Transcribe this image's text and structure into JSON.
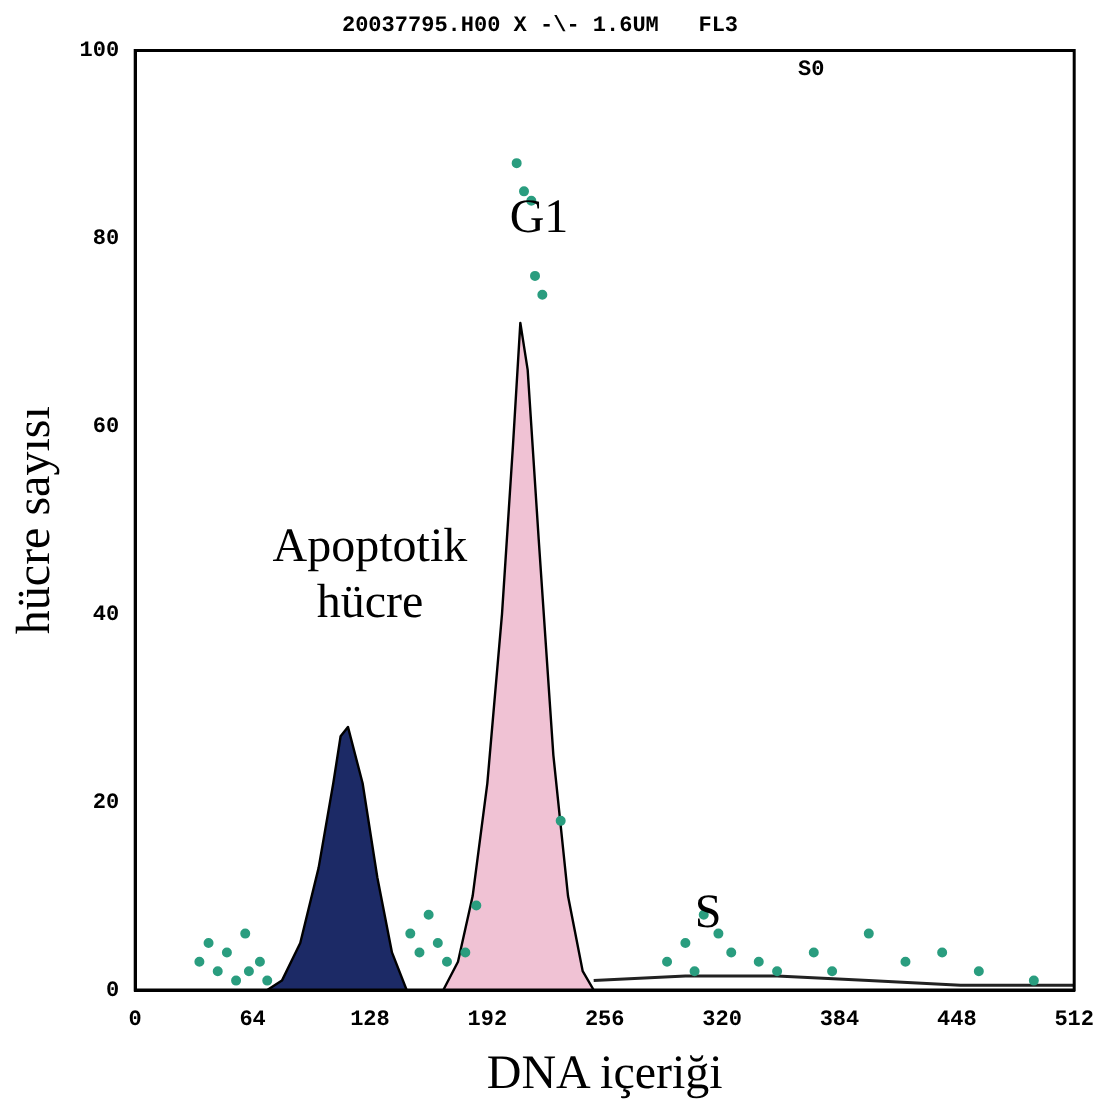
{
  "chart_data": {
    "type": "area",
    "title": "20037795.H00 X -\\- 1.6UM   FL3",
    "xlabel": "DNA içeriği",
    "ylabel": "hücre sayısı",
    "xlim": [
      0,
      512
    ],
    "xticks": [
      0,
      64,
      128,
      192,
      256,
      320,
      384,
      448,
      512
    ],
    "ylim": [
      0,
      100
    ],
    "yticks": [
      0,
      20,
      40,
      60,
      80,
      100
    ],
    "grid": false,
    "legend": false,
    "annotations": [
      "S0",
      "G1",
      "Apoptotik hücre",
      "S"
    ],
    "series": [
      {
        "color": "#1c2a66",
        "x": [
          72,
          80,
          90,
          100,
          108,
          112,
          116,
          124,
          132,
          140,
          148
        ],
        "values": [
          0,
          1,
          5,
          13,
          22,
          27,
          28,
          22,
          12,
          4,
          0
        ]
      },
      {
        "color": "#f0c2d4",
        "x": [
          168,
          176,
          184,
          192,
          200,
          206,
          210,
          214,
          220,
          228,
          236,
          244,
          250
        ],
        "values": [
          0,
          3,
          10,
          22,
          40,
          58,
          71,
          66,
          48,
          25,
          10,
          2,
          0
        ]
      },
      {
        "type": "line",
        "color": "#222222",
        "x": [
          250,
          300,
          350,
          400,
          450,
          512
        ],
        "values": [
          1,
          1.5,
          1.5,
          1,
          0.5,
          0.5
        ]
      },
      {
        "type": "scatter",
        "color": "#2a9d7f",
        "marker": "circle",
        "x": [
          35,
          40,
          45,
          50,
          55,
          60,
          62,
          68,
          72,
          150,
          155,
          160,
          165,
          170,
          180,
          186,
          208,
          212,
          216,
          218,
          222,
          232,
          290,
          300,
          305,
          310,
          318,
          325,
          340,
          350,
          370,
          380,
          400,
          420,
          440,
          460,
          490
        ],
        "values": [
          3,
          5,
          2,
          4,
          1,
          6,
          2,
          3,
          1,
          6,
          4,
          8,
          5,
          3,
          4,
          9,
          88,
          85,
          84,
          76,
          74,
          18,
          3,
          5,
          2,
          8,
          6,
          4,
          3,
          2,
          4,
          2,
          6,
          3,
          4,
          2,
          1
        ]
      }
    ]
  }
}
